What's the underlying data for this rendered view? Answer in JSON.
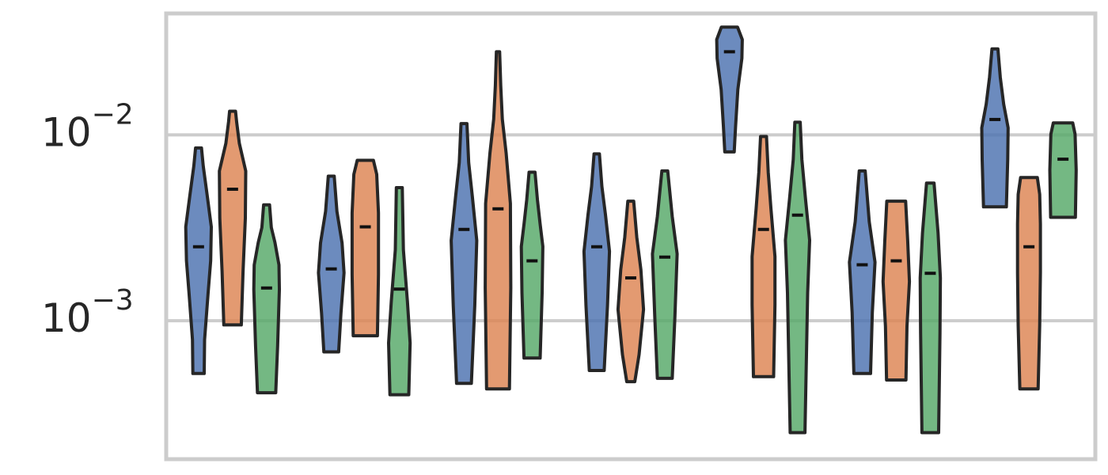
{
  "chart_data": {
    "type": "violin",
    "yscale": "log",
    "ylim": [
      0.00018,
      0.045
    ],
    "grid": true,
    "y_ticks": [
      {
        "value": 0.001,
        "base": "10",
        "exp": "−3"
      },
      {
        "value": 0.01,
        "base": "10",
        "exp": "−2"
      }
    ],
    "series_colors": [
      "#4c72b0",
      "#dd8452",
      "#55a868"
    ],
    "groups": [
      {
        "violins": [
          {
            "min": 0.00052,
            "max": 0.0085,
            "median": 0.0025,
            "shape": [
              [
                0,
                0.42
              ],
              [
                0.15,
                0.45
              ],
              [
                0.35,
                0.7
              ],
              [
                0.5,
                0.9
              ],
              [
                0.65,
                0.95
              ],
              [
                0.8,
                0.62
              ],
              [
                0.92,
                0.35
              ],
              [
                1,
                0.22
              ]
            ]
          },
          {
            "min": 0.00095,
            "max": 0.0134,
            "median": 0.0051,
            "shape": [
              [
                0,
                0.65
              ],
              [
                0.25,
                0.78
              ],
              [
                0.5,
                0.95
              ],
              [
                0.72,
                0.98
              ],
              [
                0.85,
                0.5
              ],
              [
                0.95,
                0.3
              ],
              [
                1,
                0.22
              ]
            ]
          },
          {
            "min": 0.00041,
            "max": 0.0042,
            "median": 0.0015,
            "shape": [
              [
                0,
                0.68
              ],
              [
                0.25,
                0.82
              ],
              [
                0.55,
                0.95
              ],
              [
                0.68,
                0.92
              ],
              [
                0.8,
                0.62
              ],
              [
                0.88,
                0.35
              ],
              [
                1,
                0.22
              ]
            ]
          }
        ]
      },
      {
        "violins": [
          {
            "min": 0.00068,
            "max": 0.006,
            "median": 0.0019,
            "shape": [
              [
                0,
                0.55
              ],
              [
                0.22,
                0.72
              ],
              [
                0.45,
                0.95
              ],
              [
                0.62,
                0.8
              ],
              [
                0.8,
                0.42
              ],
              [
                1,
                0.22
              ]
            ]
          },
          {
            "min": 0.00083,
            "max": 0.0073,
            "median": 0.0032,
            "shape": [
              [
                0,
                0.9
              ],
              [
                0.35,
                0.98
              ],
              [
                0.7,
                0.98
              ],
              [
                0.92,
                0.85
              ],
              [
                1,
                0.6
              ]
            ]
          },
          {
            "min": 0.0004,
            "max": 0.0052,
            "median": 0.00148,
            "shape": [
              [
                0,
                0.7
              ],
              [
                0.25,
                0.8
              ],
              [
                0.45,
                0.6
              ],
              [
                0.7,
                0.3
              ],
              [
                1,
                0.22
              ]
            ]
          }
        ]
      },
      {
        "violins": [
          {
            "min": 0.00046,
            "max": 0.0115,
            "median": 0.0031,
            "shape": [
              [
                0,
                0.55
              ],
              [
                0.3,
                0.8
              ],
              [
                0.55,
                0.95
              ],
              [
                0.72,
                0.62
              ],
              [
                0.85,
                0.35
              ],
              [
                1,
                0.22
              ]
            ]
          },
          {
            "min": 0.00043,
            "max": 0.028,
            "median": 0.004,
            "shape": [
              [
                0,
                0.85
              ],
              [
                0.3,
                0.95
              ],
              [
                0.55,
                0.92
              ],
              [
                0.7,
                0.6
              ],
              [
                0.8,
                0.32
              ],
              [
                0.9,
                0.2
              ],
              [
                1,
                0.12
              ]
            ]
          },
          {
            "min": 0.00063,
            "max": 0.0063,
            "median": 0.0021,
            "shape": [
              [
                0,
                0.6
              ],
              [
                0.35,
                0.75
              ],
              [
                0.6,
                0.8
              ],
              [
                0.72,
                0.6
              ],
              [
                0.85,
                0.4
              ],
              [
                1,
                0.22
              ]
            ]
          }
        ]
      },
      {
        "violins": [
          {
            "min": 0.00054,
            "max": 0.0079,
            "median": 0.0025,
            "shape": [
              [
                0,
                0.55
              ],
              [
                0.3,
                0.8
              ],
              [
                0.55,
                0.95
              ],
              [
                0.72,
                0.65
              ],
              [
                0.85,
                0.38
              ],
              [
                1,
                0.2
              ]
            ]
          },
          {
            "min": 0.00047,
            "max": 0.0044,
            "median": 0.0017,
            "shape": [
              [
                0,
                0.3
              ],
              [
                0.15,
                0.62
              ],
              [
                0.4,
                0.95
              ],
              [
                0.62,
                0.75
              ],
              [
                0.8,
                0.45
              ],
              [
                1,
                0.22
              ]
            ]
          },
          {
            "min": 0.00049,
            "max": 0.0064,
            "median": 0.0022,
            "shape": [
              [
                0,
                0.55
              ],
              [
                0.3,
                0.75
              ],
              [
                0.6,
                0.92
              ],
              [
                0.78,
                0.55
              ],
              [
                1,
                0.22
              ]
            ]
          }
        ]
      },
      {
        "violins": [
          {
            "min": 0.0081,
            "max": 0.038,
            "median": 0.028,
            "shape": [
              [
                0,
                0.35
              ],
              [
                0.2,
                0.45
              ],
              [
                0.5,
                0.62
              ],
              [
                0.75,
                0.92
              ],
              [
                0.9,
                0.95
              ],
              [
                1,
                0.6
              ]
            ]
          },
          {
            "min": 0.0005,
            "max": 0.0098,
            "median": 0.0031,
            "shape": [
              [
                0,
                0.75
              ],
              [
                0.3,
                0.85
              ],
              [
                0.5,
                0.85
              ],
              [
                0.7,
                0.55
              ],
              [
                0.85,
                0.35
              ],
              [
                1,
                0.22
              ]
            ]
          },
          {
            "min": 0.00025,
            "max": 0.0117,
            "median": 0.0037,
            "shape": [
              [
                0,
                0.55
              ],
              [
                0.45,
                0.75
              ],
              [
                0.62,
                0.9
              ],
              [
                0.75,
                0.6
              ],
              [
                0.88,
                0.32
              ],
              [
                1,
                0.2
              ]
            ]
          }
        ]
      },
      {
        "violins": [
          {
            "min": 0.00052,
            "max": 0.0064,
            "median": 0.002,
            "shape": [
              [
                0,
                0.62
              ],
              [
                0.3,
                0.75
              ],
              [
                0.55,
                0.95
              ],
              [
                0.75,
                0.52
              ],
              [
                1,
                0.22
              ]
            ]
          },
          {
            "min": 0.00048,
            "max": 0.0044,
            "median": 0.0021,
            "shape": [
              [
                0,
                0.72
              ],
              [
                0.3,
                0.8
              ],
              [
                0.55,
                0.98
              ],
              [
                0.78,
                0.85
              ],
              [
                1,
                0.7
              ]
            ]
          },
          {
            "min": 0.00025,
            "max": 0.0055,
            "median": 0.0018,
            "shape": [
              [
                0,
                0.62
              ],
              [
                0.4,
                0.72
              ],
              [
                0.62,
                0.75
              ],
              [
                0.8,
                0.58
              ],
              [
                1,
                0.28
              ]
            ]
          }
        ]
      },
      {
        "violins": [
          {
            "min": 0.0041,
            "max": 0.029,
            "median": 0.0121,
            "shape": [
              [
                0,
                0.85
              ],
              [
                0.3,
                0.95
              ],
              [
                0.5,
                0.98
              ],
              [
                0.65,
                0.65
              ],
              [
                0.82,
                0.4
              ],
              [
                1,
                0.22
              ]
            ]
          },
          {
            "min": 0.00043,
            "max": 0.0059,
            "median": 0.0025,
            "shape": [
              [
                0,
                0.68
              ],
              [
                0.3,
                0.8
              ],
              [
                0.55,
                0.85
              ],
              [
                0.78,
                0.85
              ],
              [
                0.92,
                0.8
              ],
              [
                1,
                0.62
              ]
            ]
          },
          {
            "min": 0.0036,
            "max": 0.0116,
            "median": 0.0074,
            "shape": [
              [
                0,
                0.92
              ],
              [
                0.5,
                0.98
              ],
              [
                0.88,
                0.9
              ],
              [
                1,
                0.72
              ]
            ]
          }
        ]
      }
    ]
  }
}
